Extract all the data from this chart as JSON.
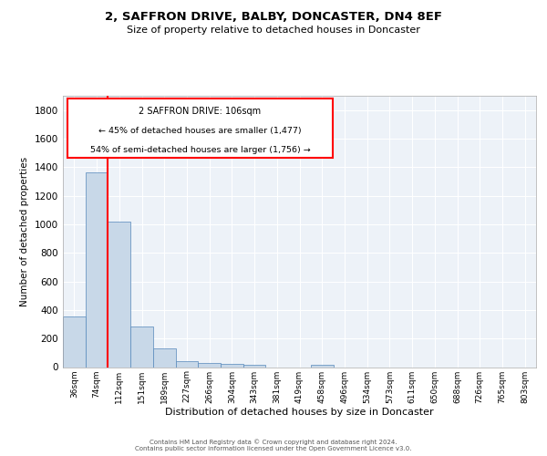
{
  "title_line1": "2, SAFFRON DRIVE, BALBY, DONCASTER, DN4 8EF",
  "title_line2": "Size of property relative to detached houses in Doncaster",
  "xlabel": "Distribution of detached houses by size in Doncaster",
  "ylabel": "Number of detached properties",
  "bar_color": "#c8d8e8",
  "bar_edge_color": "#5588bb",
  "categories": [
    "36sqm",
    "74sqm",
    "112sqm",
    "151sqm",
    "189sqm",
    "227sqm",
    "266sqm",
    "304sqm",
    "343sqm",
    "381sqm",
    "419sqm",
    "458sqm",
    "496sqm",
    "534sqm",
    "573sqm",
    "611sqm",
    "650sqm",
    "688sqm",
    "726sqm",
    "765sqm",
    "803sqm"
  ],
  "values": [
    355,
    1365,
    1020,
    285,
    130,
    43,
    30,
    20,
    15,
    0,
    0,
    15,
    0,
    0,
    0,
    0,
    0,
    0,
    0,
    0,
    0
  ],
  "ylim": [
    0,
    1900
  ],
  "yticks": [
    0,
    200,
    400,
    600,
    800,
    1000,
    1200,
    1400,
    1600,
    1800
  ],
  "property_label": "2 SAFFRON DRIVE: 106sqm",
  "annotation_line1": "← 45% of detached houses are smaller (1,477)",
  "annotation_line2": "54% of semi-detached houses are larger (1,756) →",
  "background_color": "#edf2f8",
  "grid_color": "#ffffff",
  "footer_line1": "Contains HM Land Registry data © Crown copyright and database right 2024.",
  "footer_line2": "Contains public sector information licensed under the Open Government Licence v3.0."
}
